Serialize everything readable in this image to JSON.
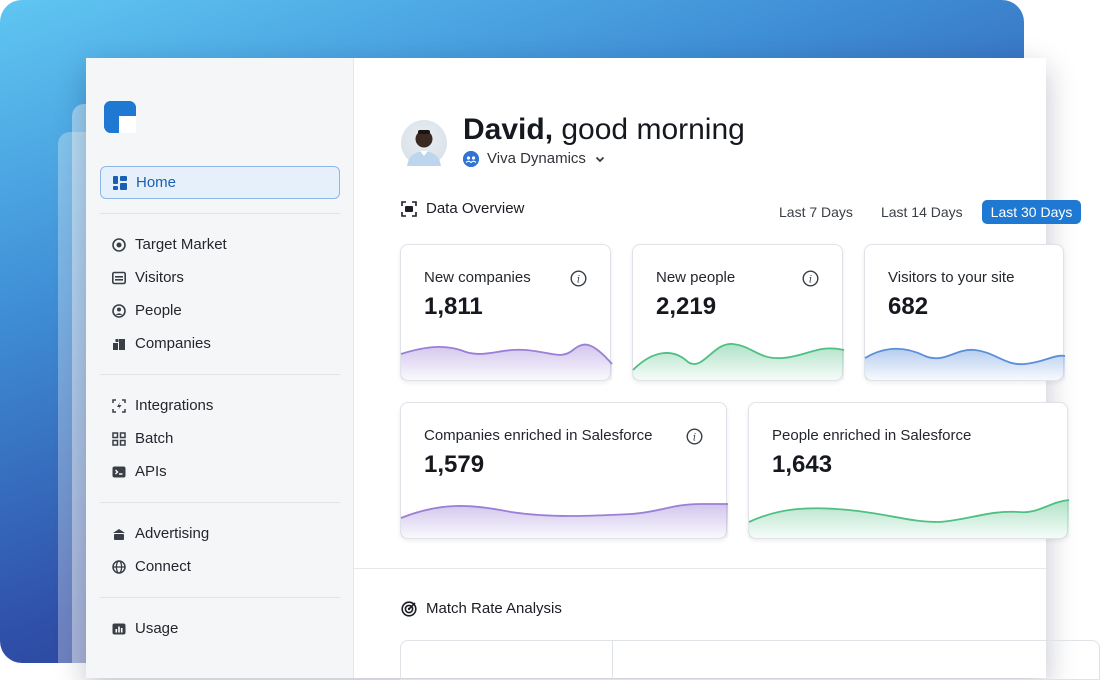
{
  "sidebar": {
    "items": [
      {
        "label": "Home",
        "icon": "grid-icon"
      },
      {
        "label": "Target Market",
        "icon": "target-icon"
      },
      {
        "label": "Visitors",
        "icon": "visitors-icon"
      },
      {
        "label": "People",
        "icon": "people-icon"
      },
      {
        "label": "Companies",
        "icon": "companies-icon"
      },
      {
        "label": "Integrations",
        "icon": "integrations-icon"
      },
      {
        "label": "Batch",
        "icon": "batch-icon"
      },
      {
        "label": "APIs",
        "icon": "api-icon"
      },
      {
        "label": "Advertising",
        "icon": "advertising-icon"
      },
      {
        "label": "Connect",
        "icon": "globe-icon"
      },
      {
        "label": "Usage",
        "icon": "usage-icon"
      }
    ]
  },
  "header": {
    "name": "David,",
    "greeting": "good morning",
    "organization": "Viva Dynamics"
  },
  "overview": {
    "title": "Data Overview",
    "ranges": [
      "Last 7 Days",
      "Last 14 Days",
      "Last 30 Days"
    ],
    "selected_range": "Last 30 Days"
  },
  "cards": [
    {
      "title": "New companies",
      "value": "1,811",
      "color": "#9b7fd6"
    },
    {
      "title": "New people",
      "value": "2,219",
      "color": "#4fbf84"
    },
    {
      "title": "Visitors to your site",
      "value": "682",
      "color": "#5b8fd9"
    },
    {
      "title": "Companies enriched in Salesforce",
      "value": "1,579",
      "color": "#9b7fd6"
    },
    {
      "title": "People enriched in Salesforce",
      "value": "1,643",
      "color": "#4fbf84"
    }
  ],
  "match_rate": {
    "title": "Match Rate Analysis"
  },
  "colors": {
    "accent": "#1f78d1",
    "active_bg": "#e6f0fb"
  }
}
